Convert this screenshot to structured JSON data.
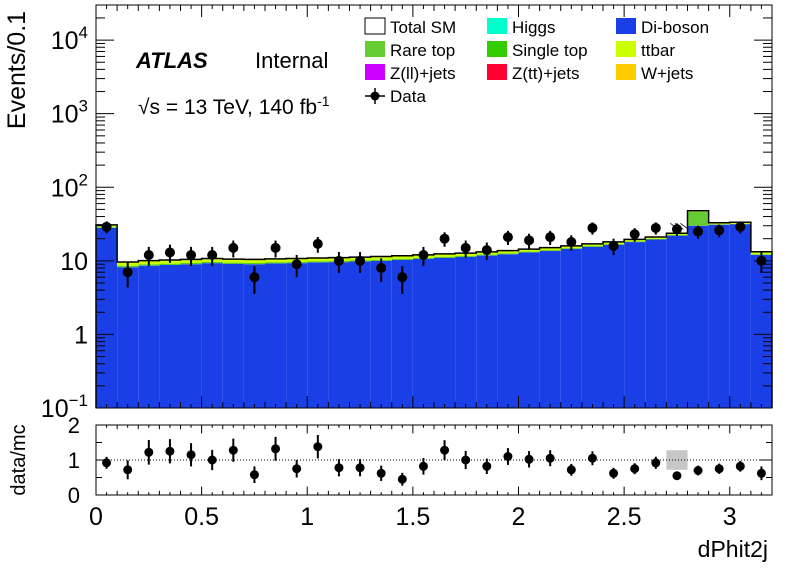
{
  "chart_data": [
    {
      "type": "bar",
      "subtype": "stacked-histogram",
      "yscale": "log",
      "ylabel": "Events/0.1",
      "xlabel": "dPhit2j",
      "xlim": [
        0,
        3.2
      ],
      "ylim": [
        0.1,
        30000
      ],
      "x_ticks": [
        "0",
        "0.5",
        "1",
        "1.5",
        "2",
        "2.5",
        "3"
      ],
      "y_ticks": [
        {
          "value": 0.1,
          "label": "10",
          "exp": "−1"
        },
        {
          "value": 1,
          "label": "1",
          "exp": ""
        },
        {
          "value": 10,
          "label": "10",
          "exp": ""
        },
        {
          "value": 100,
          "label": "10",
          "exp": "2"
        },
        {
          "value": 1000,
          "label": "10",
          "exp": "3"
        },
        {
          "value": 10000,
          "label": "10",
          "exp": "4"
        }
      ],
      "bin_edges": [
        0,
        0.1,
        0.2,
        0.3,
        0.4,
        0.5,
        0.6,
        0.7,
        0.8,
        0.9,
        1.0,
        1.1,
        1.2,
        1.3,
        1.4,
        1.5,
        1.6,
        1.7,
        1.8,
        1.9,
        2.0,
        2.1,
        2.2,
        2.3,
        2.4,
        2.5,
        2.6,
        2.7,
        2.8,
        2.9,
        3.0,
        3.1,
        3.2
      ],
      "series": [
        {
          "name": "Di-boson",
          "color": "#1a3fe6",
          "values": [
            28,
            8.2,
            8.6,
            8.8,
            9,
            9.3,
            9.1,
            9.0,
            9.2,
            9.3,
            9.5,
            9.6,
            9.8,
            10,
            10.3,
            10.6,
            11,
            11.3,
            11.8,
            12.3,
            13,
            13.6,
            14.5,
            15.5,
            16.5,
            18,
            19.5,
            22,
            30,
            31,
            31.5,
            12
          ]
        },
        {
          "name": "Higgs",
          "color": "#00ffcc",
          "values": [
            0.22,
            0,
            0,
            0,
            0,
            0,
            0,
            0,
            0,
            0,
            0,
            0,
            0,
            0,
            0,
            0,
            0,
            0,
            0,
            0,
            0,
            0,
            0,
            0,
            0,
            0,
            0,
            0,
            0,
            0,
            0,
            0
          ]
        },
        {
          "name": "Rare top",
          "color": "#66cc33",
          "values": [
            0.3,
            0.1,
            0.1,
            0.1,
            0.1,
            0.1,
            0.1,
            0.1,
            0.1,
            0.1,
            0.1,
            0.1,
            0.1,
            0.1,
            0.1,
            0.1,
            0.1,
            0.1,
            0.1,
            0.1,
            0.1,
            0.1,
            0.1,
            0.1,
            0.1,
            0.1,
            0.1,
            0.1,
            16,
            0.1,
            0.1,
            0.1
          ]
        },
        {
          "name": "Single top",
          "color": "#33cc00",
          "values": [
            0.5,
            0.25,
            0.25,
            0.25,
            0.25,
            0.25,
            0.25,
            0.25,
            0.25,
            0.25,
            0.25,
            0.25,
            0.25,
            0.25,
            0.25,
            0.25,
            0.25,
            0.25,
            0.25,
            0.25,
            0.25,
            0.3,
            0.3,
            0.3,
            0.3,
            0.3,
            0.3,
            0.3,
            0.4,
            0.3,
            0.3,
            0.2
          ]
        },
        {
          "name": "ttbar",
          "color": "#ccff00",
          "values": [
            1.5,
            0.9,
            0.9,
            0.9,
            0.9,
            0.9,
            0.9,
            0.9,
            0.9,
            0.9,
            0.9,
            0.9,
            0.9,
            0.9,
            0.9,
            0.9,
            0.9,
            0.9,
            0.9,
            0.9,
            0.9,
            0.9,
            0.9,
            0.9,
            1.0,
            1.0,
            1.0,
            1.1,
            1.2,
            1.2,
            1.2,
            0.8
          ]
        },
        {
          "name": "Z(ll)+jets",
          "color": "#cc00ff",
          "values": [
            0,
            0,
            0,
            0,
            0,
            0,
            0,
            0,
            0,
            0,
            0,
            0,
            0,
            0,
            0,
            0,
            0,
            0,
            0,
            0,
            0,
            0,
            0,
            0,
            0,
            0,
            0,
            0,
            0,
            0,
            0,
            0
          ]
        },
        {
          "name": "Z(tt)+jets",
          "color": "#ff0033",
          "values": [
            0,
            0,
            0,
            0,
            0,
            0,
            0,
            0,
            0,
            0,
            0,
            0,
            0,
            0,
            0,
            0,
            0,
            0,
            0,
            0,
            0,
            0,
            0,
            0,
            0,
            0,
            0,
            0,
            0,
            0,
            0,
            0
          ]
        },
        {
          "name": "W+jets",
          "color": "#ffcc00",
          "values": [
            0.3,
            0.2,
            0.2,
            0.2,
            0.2,
            0.2,
            0.2,
            0.2,
            0.2,
            0.2,
            0.2,
            0.2,
            0.2,
            0.2,
            0.2,
            0.2,
            0.2,
            0.2,
            0.2,
            0.2,
            0.2,
            0.2,
            0.2,
            0.2,
            0.2,
            0.2,
            0.2,
            0.2,
            0.3,
            0.3,
            0.3,
            0.2
          ]
        }
      ],
      "data_points": {
        "name": "Data",
        "x": [
          0.05,
          0.15,
          0.25,
          0.35,
          0.45,
          0.55,
          0.65,
          0.75,
          0.85,
          0.95,
          1.05,
          1.15,
          1.25,
          1.35,
          1.45,
          1.55,
          1.65,
          1.75,
          1.85,
          1.95,
          2.05,
          2.15,
          2.25,
          2.35,
          2.45,
          2.55,
          2.65,
          2.75,
          2.85,
          2.95,
          3.05,
          3.15
        ],
        "y": [
          29,
          7,
          12,
          13,
          12,
          12,
          15,
          6,
          15,
          9,
          17,
          10,
          10,
          8,
          6,
          12,
          20,
          15,
          14,
          21,
          19,
          21,
          18,
          28,
          16,
          23,
          28,
          27,
          25,
          26,
          29,
          10
        ]
      },
      "legend": [
        "Total SM",
        "Higgs",
        "Di-boson",
        "Rare top",
        "Single top",
        "ttbar",
        "Z(ll)+jets",
        "Z(tt)+jets",
        "W+jets",
        "Data"
      ],
      "legend_placement": "top-right",
      "annotations": {
        "atlas": "ATLAS",
        "internal": "Internal",
        "energy": "√s = 13 TeV, 140 fb",
        "energy_exp": "-1"
      },
      "grid": false
    },
    {
      "type": "scatter",
      "role": "ratio-panel",
      "ylabel": "data/mc",
      "xlabel": "dPhit2j",
      "xlim": [
        0,
        3.2
      ],
      "ylim": [
        0,
        2
      ],
      "y_ticks": [
        "0",
        "1",
        "2"
      ],
      "x": [
        0.05,
        0.15,
        0.25,
        0.35,
        0.45,
        0.55,
        0.65,
        0.75,
        0.85,
        0.95,
        1.05,
        1.15,
        1.25,
        1.35,
        1.45,
        1.55,
        1.65,
        1.75,
        1.85,
        1.95,
        2.05,
        2.15,
        2.25,
        2.35,
        2.45,
        2.55,
        2.65,
        2.75,
        2.85,
        2.95,
        3.05,
        3.15
      ],
      "y": [
        0.92,
        0.72,
        1.22,
        1.25,
        1.15,
        1.0,
        1.28,
        0.58,
        1.32,
        0.75,
        1.38,
        0.78,
        0.78,
        0.62,
        0.45,
        0.82,
        1.28,
        1.0,
        0.82,
        1.1,
        1.02,
        1.05,
        0.72,
        1.05,
        0.62,
        0.75,
        0.92,
        0.55,
        0.7,
        0.75,
        0.82,
        0.62
      ],
      "unc_band_bin": {
        "x": [
          2.7,
          2.8
        ],
        "y": [
          0.72,
          1.28
        ]
      }
    }
  ]
}
